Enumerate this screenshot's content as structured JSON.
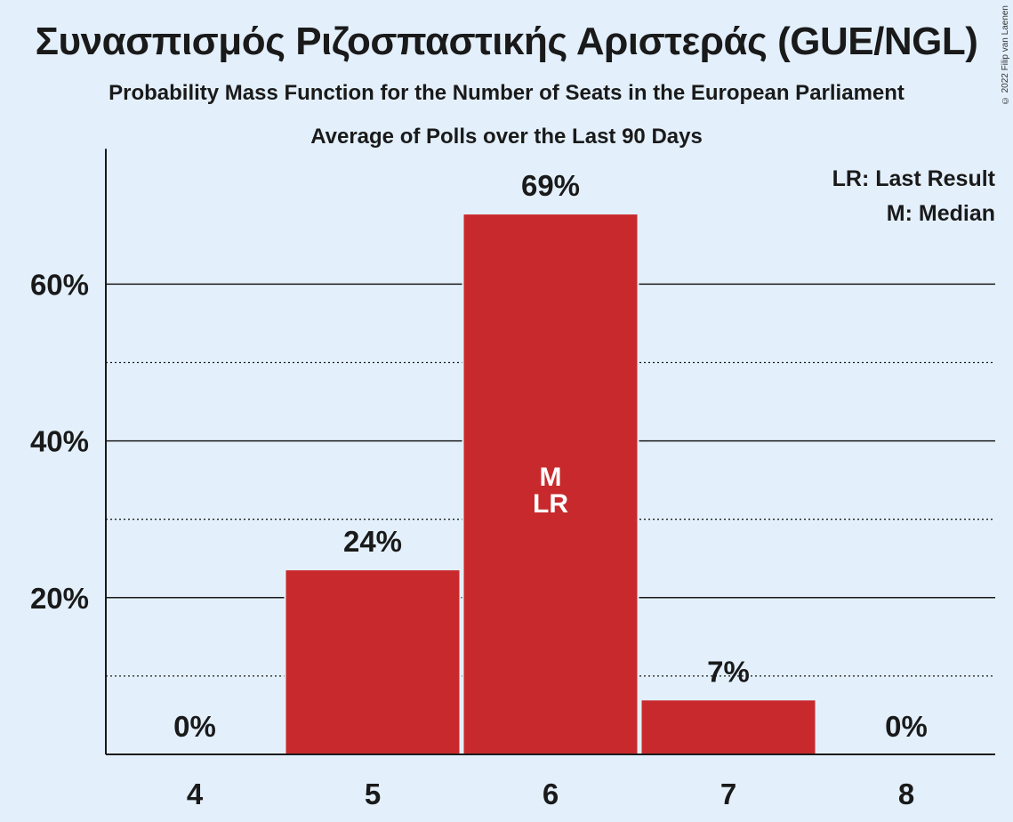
{
  "title": "Συνασπισμός Ριζοσπαστικής Αριστεράς (GUE/NGL)",
  "subtitle": "Probability Mass Function for the Number of Seats in the European Parliament",
  "subtitle2": "Average of Polls over the Last 90 Days",
  "copyright": "© 2022 Filip van Laenen",
  "legend": [
    "LR: Last Result",
    "M: Median"
  ],
  "colors": {
    "bar": "#c8292c",
    "background": "#e3f0fc"
  },
  "chart_data": {
    "type": "bar",
    "categories": [
      "4",
      "5",
      "6",
      "7",
      "8"
    ],
    "values": [
      0,
      23.6,
      69,
      7,
      0
    ],
    "value_labels": [
      "0%",
      "24%",
      "69%",
      "7%",
      "0%"
    ],
    "bar_annotations": [
      "",
      "",
      "M\nLR",
      "",
      ""
    ],
    "ylim": [
      0,
      75
    ],
    "yticks_major": [
      20,
      40,
      60
    ],
    "ytick_labels": [
      "20%",
      "40%",
      "60%"
    ],
    "yticks_minor": [
      10,
      30,
      50
    ],
    "grid": true,
    "legend_placement": "top-right"
  }
}
